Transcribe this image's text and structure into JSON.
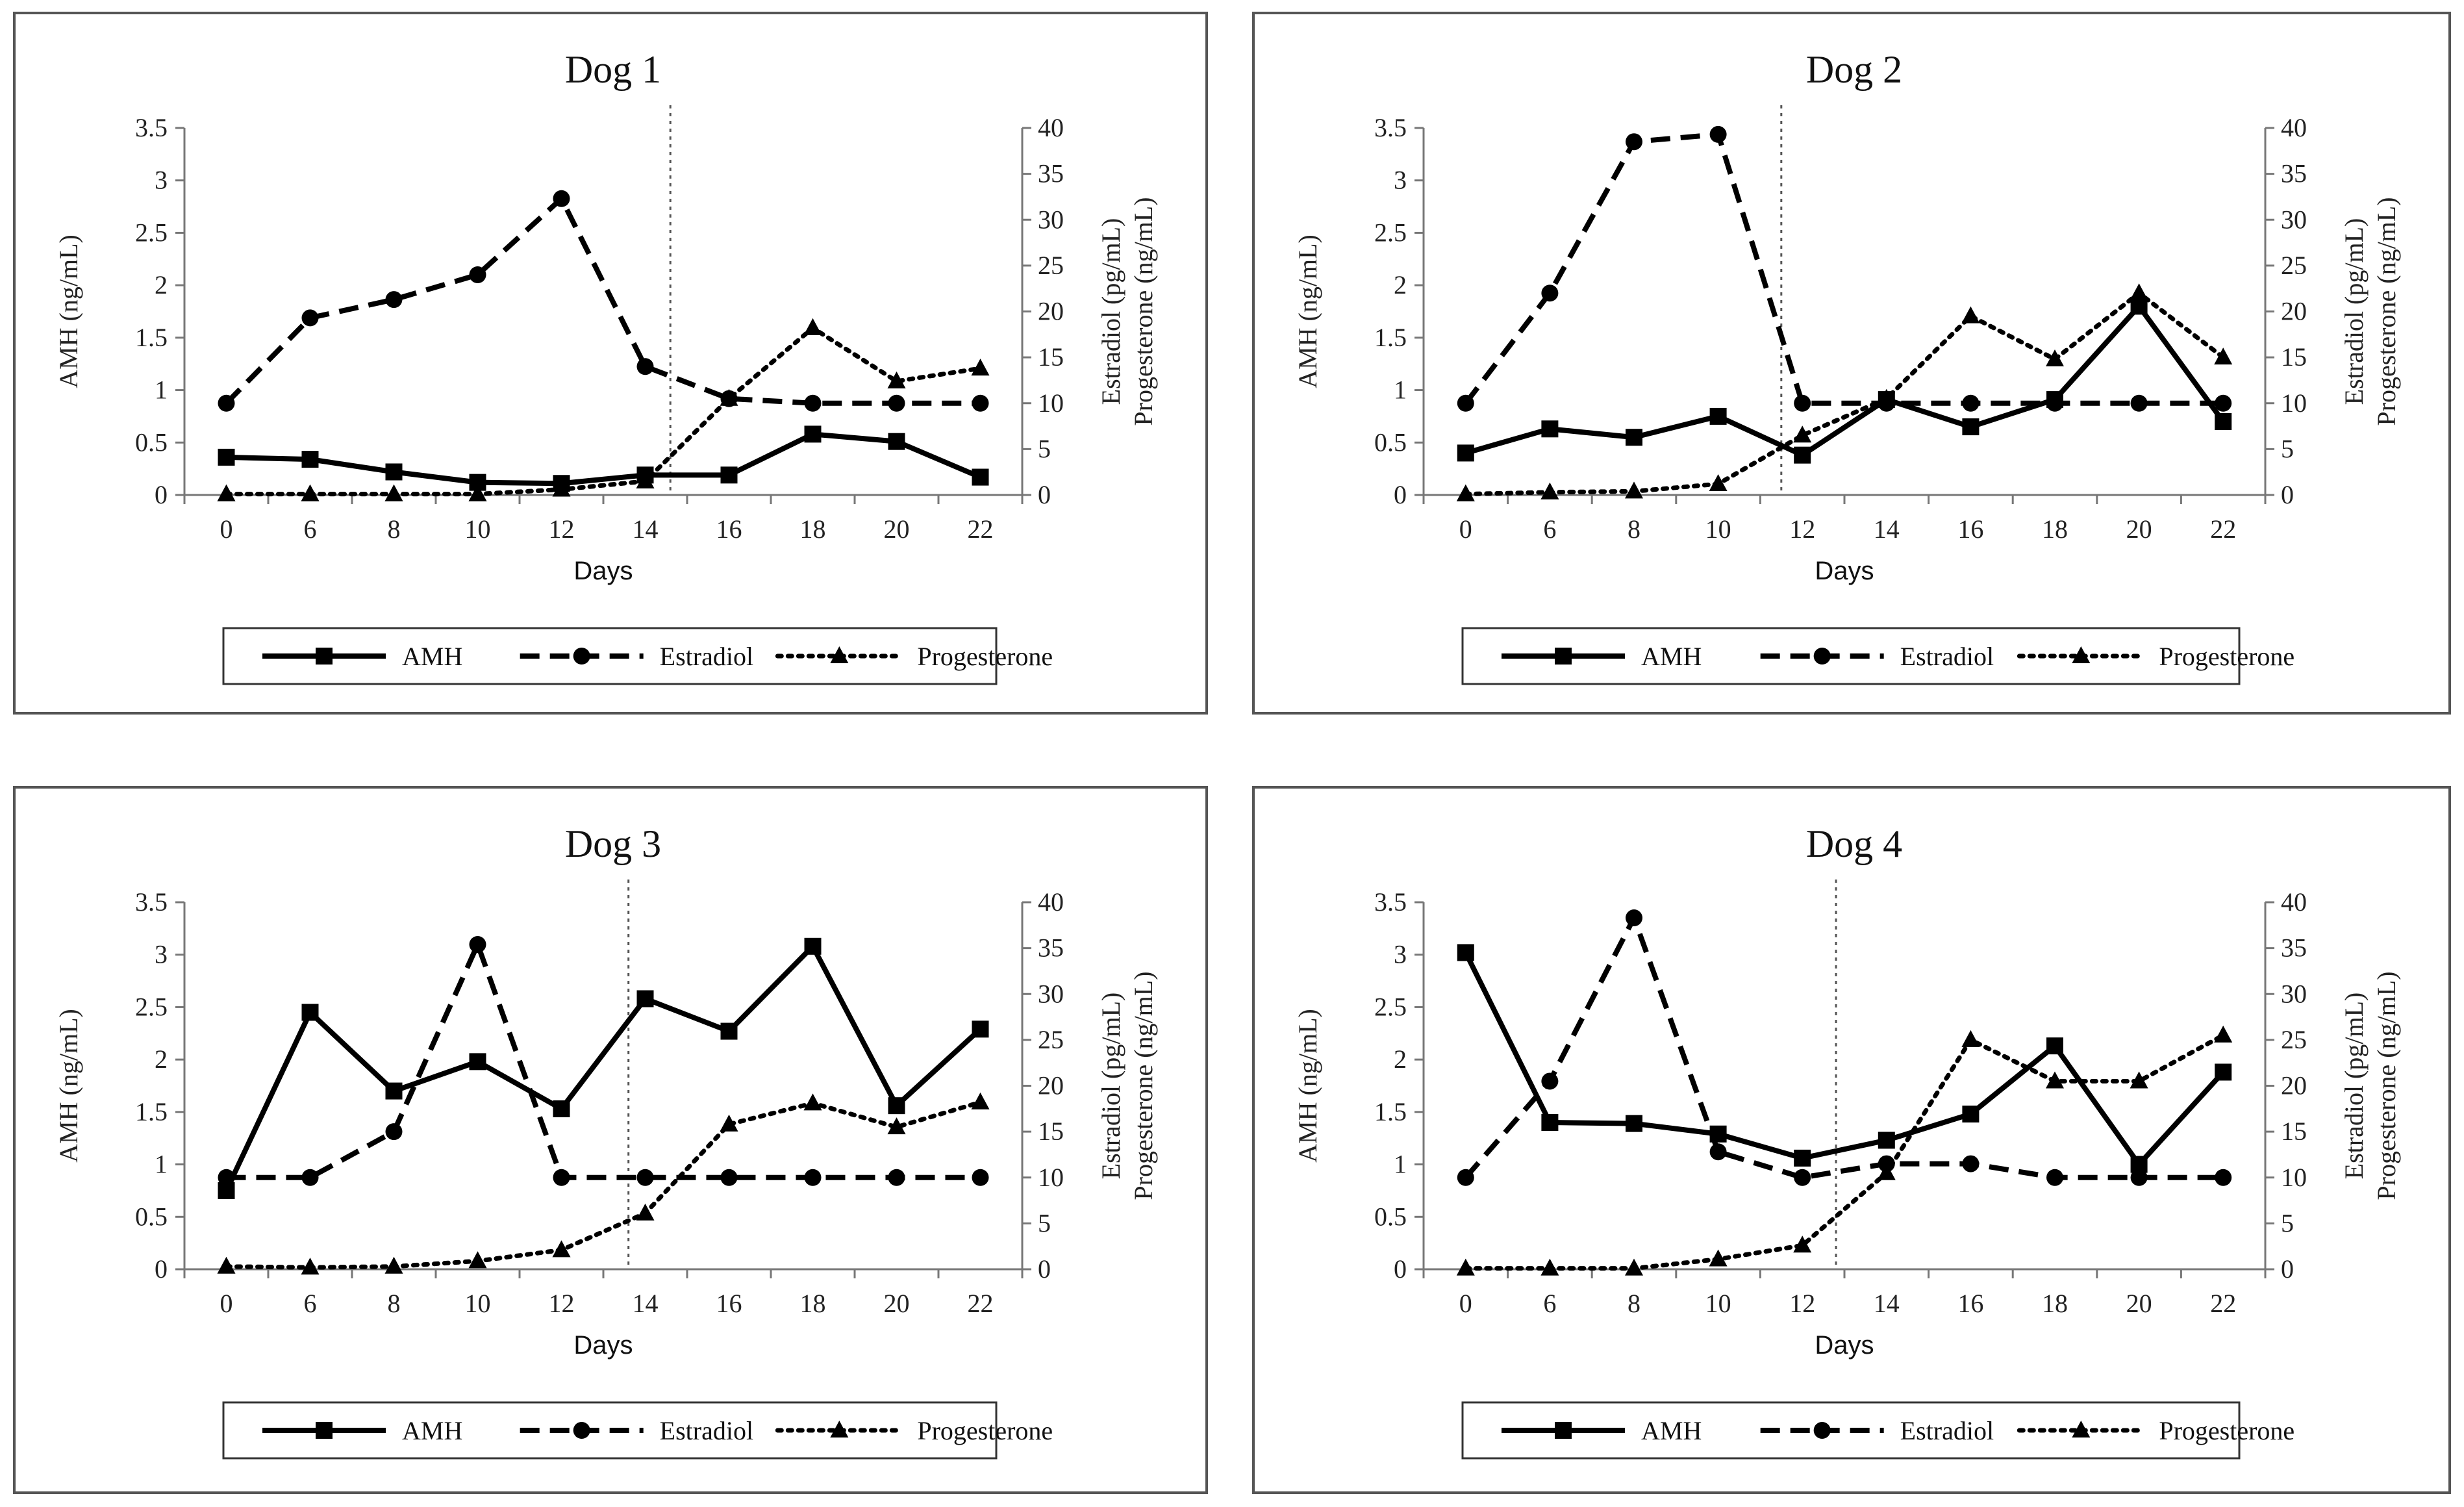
{
  "chart_data": [
    {
      "type": "line",
      "title": "Dog 1",
      "xlabel": "Days",
      "ylabel": "AMH (ng/mL)",
      "y2label_line1": "Estradiol (pg/mL)",
      "y2label_line2": "Progesterone (ng/mL)",
      "categories": [
        "0",
        "6",
        "8",
        "10",
        "12",
        "14",
        "16",
        "18",
        "20",
        "22"
      ],
      "ylim": [
        0,
        3.5
      ],
      "y2lim": [
        0,
        40
      ],
      "yticks": [
        "0",
        "0.5",
        "1",
        "1.5",
        "2",
        "2.5",
        "3",
        "3.5"
      ],
      "y2ticks": [
        "0",
        "5",
        "10",
        "15",
        "20",
        "25",
        "30",
        "35",
        "40"
      ],
      "ovulation_line_day_index": 5.3,
      "series": [
        {
          "name": "AMH",
          "axis": "left",
          "style": "solid",
          "marker": "square",
          "values": [
            0.36,
            0.34,
            0.22,
            0.12,
            0.11,
            0.19,
            0.19,
            0.58,
            0.51,
            0.17
          ]
        },
        {
          "name": "Estradiol",
          "axis": "right",
          "style": "dashed",
          "marker": "circle",
          "values": [
            10,
            19.3,
            21.3,
            24,
            32.3,
            14,
            10.5,
            10,
            10,
            10
          ]
        },
        {
          "name": "Progesterone",
          "axis": "right",
          "style": "dotted",
          "marker": "triangle",
          "values": [
            0.1,
            0.1,
            0.1,
            0.1,
            0.6,
            1.5,
            10.5,
            18.2,
            12.4,
            13.8
          ]
        }
      ]
    },
    {
      "type": "line",
      "title": "Dog 2",
      "xlabel": "Days",
      "ylabel": "AMH (ng/mL)",
      "y2label_line1": "Estradiol (pg/mL)",
      "y2label_line2": "Progesterone (ng/mL)",
      "categories": [
        "0",
        "6",
        "8",
        "10",
        "12",
        "14",
        "16",
        "18",
        "20",
        "22"
      ],
      "ylim": [
        0,
        3.5
      ],
      "y2lim": [
        0,
        40
      ],
      "yticks": [
        "0",
        "0.5",
        "1",
        "1.5",
        "2",
        "2.5",
        "3",
        "3.5"
      ],
      "y2ticks": [
        "0",
        "5",
        "10",
        "15",
        "20",
        "25",
        "30",
        "35",
        "40"
      ],
      "ovulation_line_day_index": 3.75,
      "series": [
        {
          "name": "AMH",
          "axis": "left",
          "style": "solid",
          "marker": "square",
          "values": [
            0.4,
            0.63,
            0.55,
            0.75,
            0.38,
            0.91,
            0.65,
            0.91,
            1.8,
            0.7
          ]
        },
        {
          "name": "Estradiol",
          "axis": "right",
          "style": "dashed",
          "marker": "circle",
          "values": [
            10,
            22,
            38.5,
            39.3,
            10,
            10,
            10,
            10,
            10,
            10
          ]
        },
        {
          "name": "Progesterone",
          "axis": "right",
          "style": "dotted",
          "marker": "triangle",
          "values": [
            0.1,
            0.3,
            0.4,
            1.2,
            6.5,
            10.5,
            19.5,
            14.8,
            22,
            15
          ]
        }
      ]
    },
    {
      "type": "line",
      "title": "Dog 3",
      "xlabel": "Days",
      "ylabel": "AMH (ng/mL)",
      "y2label_line1": "Estradiol (pg/mL)",
      "y2label_line2": "Progesterone (ng/mL)",
      "categories": [
        "0",
        "6",
        "8",
        "10",
        "12",
        "14",
        "16",
        "18",
        "20",
        "22"
      ],
      "ylim": [
        0,
        3.5
      ],
      "y2lim": [
        0,
        40
      ],
      "yticks": [
        "0",
        "0.5",
        "1",
        "1.5",
        "2",
        "2.5",
        "3",
        "3.5"
      ],
      "y2ticks": [
        "0",
        "5",
        "10",
        "15",
        "20",
        "25",
        "30",
        "35",
        "40"
      ],
      "ovulation_line_day_index": 4.8,
      "series": [
        {
          "name": "AMH",
          "axis": "left",
          "style": "solid",
          "marker": "square",
          "values": [
            0.75,
            2.45,
            1.7,
            1.98,
            1.53,
            2.58,
            2.27,
            3.08,
            1.56,
            2.29
          ]
        },
        {
          "name": "Estradiol",
          "axis": "right",
          "style": "dashed",
          "marker": "circle",
          "values": [
            10,
            10,
            15,
            35.4,
            10,
            10,
            10,
            10,
            10,
            10
          ]
        },
        {
          "name": "Progesterone",
          "axis": "right",
          "style": "dotted",
          "marker": "triangle",
          "values": [
            0.3,
            0.2,
            0.3,
            0.9,
            2.1,
            6.1,
            15.8,
            18.1,
            15.5,
            18.2
          ]
        }
      ]
    },
    {
      "type": "line",
      "title": "Dog 4",
      "xlabel": "Days",
      "ylabel": "AMH (ng/mL)",
      "y2label_line1": "Estradiol (pg/mL)",
      "y2label_line2": "Progesterone (ng/mL)",
      "categories": [
        "0",
        "6",
        "8",
        "10",
        "12",
        "14",
        "16",
        "18",
        "20",
        "22"
      ],
      "ylim": [
        0,
        3.5
      ],
      "y2lim": [
        0,
        40
      ],
      "yticks": [
        "0",
        "0.5",
        "1",
        "1.5",
        "2",
        "2.5",
        "3",
        "3.5"
      ],
      "y2ticks": [
        "0",
        "5",
        "10",
        "15",
        "20",
        "25",
        "30",
        "35",
        "40"
      ],
      "ovulation_line_day_index": 4.4,
      "series": [
        {
          "name": "AMH",
          "axis": "left",
          "style": "solid",
          "marker": "square",
          "values": [
            3.02,
            1.4,
            1.39,
            1.29,
            1.06,
            1.23,
            1.48,
            2.13,
            1.0,
            1.88
          ]
        },
        {
          "name": "Estradiol",
          "axis": "right",
          "style": "dashed",
          "marker": "circle",
          "values": [
            10,
            20.5,
            38.3,
            12.8,
            10,
            11.5,
            11.5,
            10,
            10,
            10
          ]
        },
        {
          "name": "Progesterone",
          "axis": "right",
          "style": "dotted",
          "marker": "triangle",
          "values": [
            0.1,
            0.1,
            0.1,
            1.1,
            2.6,
            10.5,
            25,
            20.5,
            20.5,
            25.5
          ]
        }
      ]
    }
  ]
}
